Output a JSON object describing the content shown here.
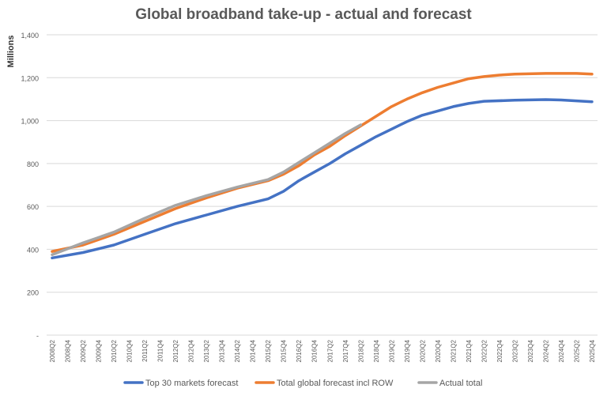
{
  "chart_data": {
    "type": "line",
    "title": "Global broadband take-up - actual and forecast",
    "ylabel": "Millions",
    "xlabel": "",
    "ylim": [
      0,
      1400
    ],
    "yticks": [
      {
        "value": 0,
        "label": "-"
      },
      {
        "value": 200,
        "label": "200"
      },
      {
        "value": 400,
        "label": "400"
      },
      {
        "value": 600,
        "label": "600"
      },
      {
        "value": 800,
        "label": "800"
      },
      {
        "value": 1000,
        "label": "1,000"
      },
      {
        "value": 1200,
        "label": "1,200"
      },
      {
        "value": 1400,
        "label": "1,400"
      }
    ],
    "x_start": "2008Q2",
    "x_end": "2025Q4",
    "tick_labels": [
      "2008Q2",
      "2008Q4",
      "2009Q2",
      "2009Q4",
      "2010Q2",
      "2010Q4",
      "2011Q2",
      "2011Q4",
      "2012Q2",
      "2012Q4",
      "2013Q2",
      "2013Q4",
      "2014Q2",
      "2014Q4",
      "2015Q2",
      "2015Q4",
      "2016Q2",
      "2016Q4",
      "2017Q2",
      "2017Q4",
      "2018Q2",
      "2018Q4",
      "2019Q2",
      "2019Q4",
      "2020Q2",
      "2020Q4",
      "2021Q2",
      "2021Q4",
      "2022Q2",
      "2022Q4",
      "2023Q2",
      "2023Q4",
      "2024Q2",
      "2024Q4",
      "2025Q2",
      "2025Q4"
    ],
    "grid": true,
    "legend_position": "bottom",
    "series": [
      {
        "name": "Top 30 markets forecast",
        "color": "#4472C4",
        "points": [
          [
            "2008Q2",
            360
          ],
          [
            "2009Q2",
            385
          ],
          [
            "2010Q2",
            420
          ],
          [
            "2011Q2",
            470
          ],
          [
            "2012Q2",
            520
          ],
          [
            "2013Q2",
            560
          ],
          [
            "2014Q2",
            600
          ],
          [
            "2015Q2",
            635
          ],
          [
            "2015Q4",
            670
          ],
          [
            "2016Q2",
            720
          ],
          [
            "2016Q4",
            760
          ],
          [
            "2017Q2",
            800
          ],
          [
            "2017Q4",
            845
          ],
          [
            "2018Q2",
            885
          ],
          [
            "2018Q4",
            925
          ],
          [
            "2019Q2",
            960
          ],
          [
            "2019Q4",
            995
          ],
          [
            "2020Q2",
            1025
          ],
          [
            "2020Q4",
            1045
          ],
          [
            "2021Q2",
            1065
          ],
          [
            "2021Q4",
            1080
          ],
          [
            "2022Q2",
            1090
          ],
          [
            "2023Q2",
            1095
          ],
          [
            "2024Q2",
            1098
          ],
          [
            "2024Q4",
            1096
          ],
          [
            "2025Q2",
            1092
          ],
          [
            "2025Q4",
            1088
          ]
        ]
      },
      {
        "name": "Total global forecast incl ROW",
        "color": "#ED7D31",
        "points": [
          [
            "2008Q2",
            390
          ],
          [
            "2009Q2",
            420
          ],
          [
            "2010Q2",
            470
          ],
          [
            "2011Q2",
            530
          ],
          [
            "2012Q2",
            590
          ],
          [
            "2013Q2",
            640
          ],
          [
            "2014Q2",
            685
          ],
          [
            "2015Q2",
            720
          ],
          [
            "2015Q4",
            750
          ],
          [
            "2016Q2",
            790
          ],
          [
            "2016Q4",
            840
          ],
          [
            "2017Q2",
            880
          ],
          [
            "2017Q4",
            930
          ],
          [
            "2018Q2",
            975
          ],
          [
            "2018Q4",
            1020
          ],
          [
            "2019Q2",
            1065
          ],
          [
            "2019Q4",
            1100
          ],
          [
            "2020Q2",
            1130
          ],
          [
            "2020Q4",
            1155
          ],
          [
            "2021Q2",
            1175
          ],
          [
            "2021Q4",
            1195
          ],
          [
            "2022Q2",
            1205
          ],
          [
            "2022Q4",
            1212
          ],
          [
            "2023Q2",
            1217
          ],
          [
            "2024Q2",
            1220
          ],
          [
            "2025Q2",
            1220
          ],
          [
            "2025Q4",
            1217
          ]
        ]
      },
      {
        "name": "Actual total",
        "color": "#A5A5A5",
        "points": [
          [
            "2008Q2",
            375
          ],
          [
            "2009Q2",
            430
          ],
          [
            "2010Q2",
            480
          ],
          [
            "2011Q2",
            545
          ],
          [
            "2012Q2",
            605
          ],
          [
            "2013Q2",
            650
          ],
          [
            "2014Q2",
            690
          ],
          [
            "2015Q2",
            725
          ],
          [
            "2015Q4",
            760
          ],
          [
            "2016Q2",
            805
          ],
          [
            "2016Q4",
            850
          ],
          [
            "2017Q2",
            895
          ],
          [
            "2017Q4",
            940
          ],
          [
            "2018Q2",
            980
          ]
        ]
      }
    ]
  }
}
